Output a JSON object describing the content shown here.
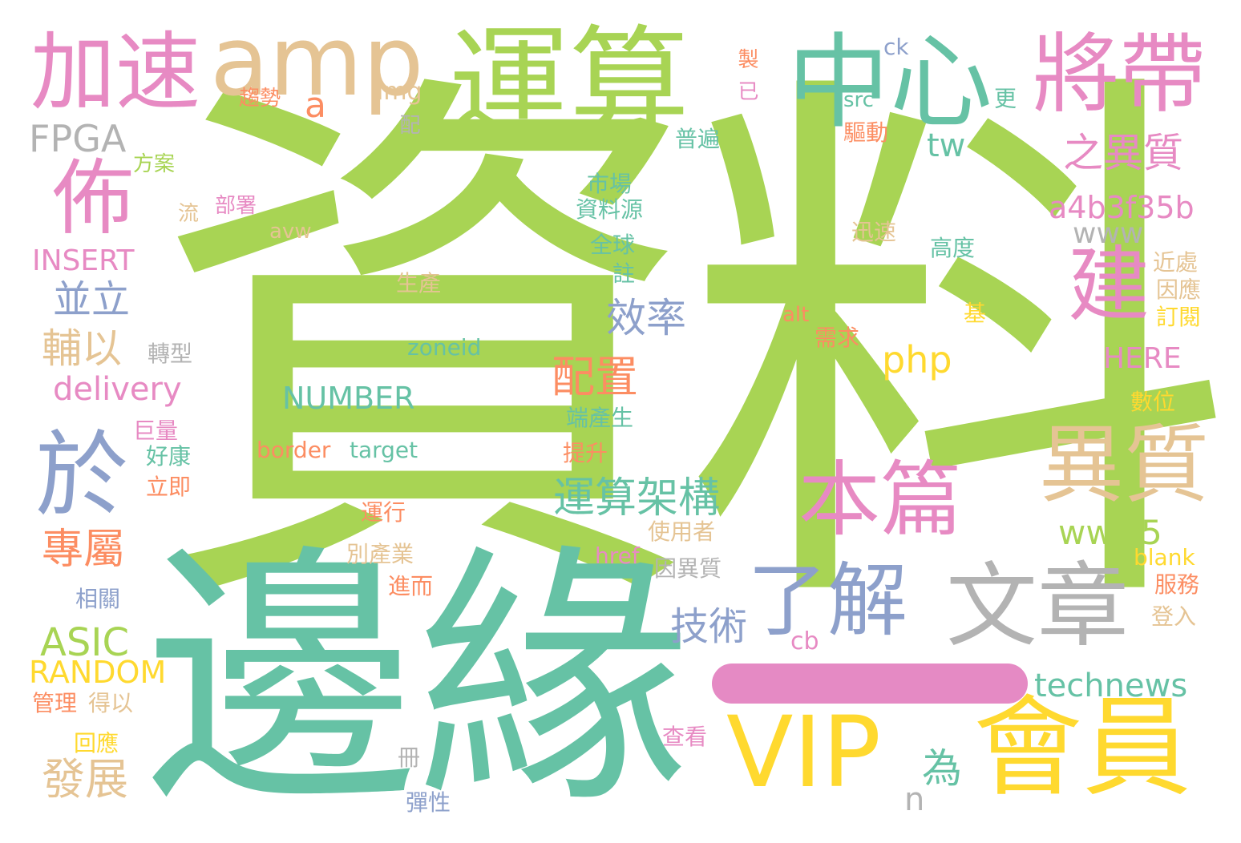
{
  "colors": {
    "green": "#a8d454",
    "teal": "#66c2a5",
    "orange": "#fc8d62",
    "blue": "#8da0cb",
    "pink": "#e78ac3",
    "yellow": "#ffd92f",
    "tan": "#e5c494",
    "gray": "#b3b3b3"
  },
  "words": {
    "w_zi_liao": "資料",
    "w_bian_yuan": "邊緣",
    "w_yun_suan": "運算",
    "w_zhong_xin": "中心",
    "w_amp": "amp",
    "w_jia_su": "加速",
    "w_jiang_dai": "將帶",
    "w_bu": "佈",
    "w_jian": "建",
    "w_yu": "於",
    "w_yi_zhi": "異質",
    "w_ben_pian": "本篇",
    "w_le_jie": "了解",
    "w_wen_zhang": "文章",
    "w_vip": "VIP",
    "w_hui_yuan": "會員",
    "w_fpga": "FPGA",
    "w_zhi_yi_zhi": "之異質",
    "w_a4b": "a4b3f35b",
    "w_www": "www",
    "w_tw": "tw",
    "w_a": "a",
    "w_img": "img",
    "w_ck": "ck",
    "w_src": "src",
    "w_xiao_lv": "效率",
    "w_bing_li": "並立",
    "w_insert": "INSERT",
    "w_fu_yi": "輔以",
    "w_delivery": "delivery",
    "w_pei_zhi": "配置",
    "w_php": "php",
    "w_zoneid": "zoneid",
    "w_number": "NUMBER",
    "w_yun_suan_jia_gou": "運算架構",
    "w_www5": "www5",
    "w_ji_shu": "技術",
    "w_asic": "ASIC",
    "w_random": "RANDOM",
    "w_zhuan_shu": "專屬",
    "w_fa_zhan": "發展",
    "w_technews": "technews",
    "w_wei": "為",
    "w_n": "n",
    "w_border": "border",
    "w_target": "target",
    "w_here": "HERE",
    "w_cb": "cb",
    "w_href": "href",
    "w_blank": "blank",
    "w_alt": "alt",
    "w_avw": "avw",
    "w_qu_shi": "趨勢",
    "w_pei": "配",
    "w_fang_an": "方案",
    "w_liu": "流",
    "w_bu_shu": "部署",
    "w_shi_chang": "市場",
    "w_zi_liao_yuan": "資料源",
    "w_quan_qiu": "全球",
    "w_zhu": "註",
    "w_sheng_chan": "生產",
    "w_zhuan_xing": "轉型",
    "w_ju_liang": "巨量",
    "w_hao_kang": "好康",
    "w_li_ji": "立即",
    "w_duan_chan_sheng": "端產生",
    "w_ti_sheng": "提升",
    "w_yun_xing": "運行",
    "w_shi_yong_zhe": "使用者",
    "w_bie_chan_ye": "別產業",
    "w_jin_er": "進而",
    "w_yin_yi_zhi": "因異質",
    "w_xiang_guan": "相關",
    "w_guan_li": "管理",
    "w_de_yi": "得以",
    "w_hui_ying": "回應",
    "w_ce": "冊",
    "w_tan_xing": "彈性",
    "w_cha_kan": "查看",
    "w_fu_wu": "服務",
    "w_deng_ru": "登入",
    "w_shu_wei": "數位",
    "w_xu_qiu": "需求",
    "w_ji": "基",
    "w_gao_du": "高度",
    "w_xun_su": "迅速",
    "w_qu_dong": "驅動",
    "w_pu_bian": "普遍",
    "w_zhi": "製",
    "w_yi": "已",
    "w_geng": "更",
    "w_jin_chu": "近處",
    "w_yin_ying": "因應",
    "w_ding_yue": "訂閱"
  }
}
